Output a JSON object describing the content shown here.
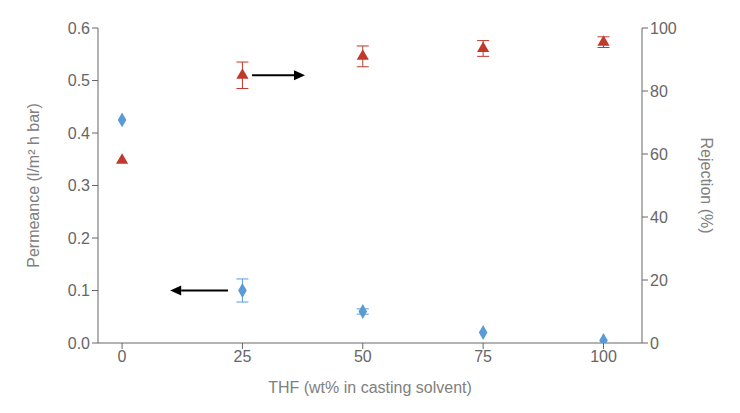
{
  "chart_data": {
    "type": "scatter",
    "xlabel": "THF (wt% in casting solvent)",
    "ylabel": "Permeance (l/m² h bar)",
    "y2label": "Rejection (%)",
    "x": [
      0,
      25,
      50,
      75,
      100
    ],
    "series": [
      {
        "color": "#5b9bd5",
        "marker": "diamond",
        "values": [
          0.425,
          0.1,
          0.06,
          0.02,
          0.005
        ],
        "error": [
          0.0,
          0.022,
          0.005,
          0.0,
          0.0
        ]
      },
      {
        "color": "#c0392b",
        "marker": "triangle",
        "axis": "y2",
        "values": [
          58.0,
          85.0,
          91.0,
          93.5,
          95.5
        ],
        "error": [
          0.0,
          4.2,
          3.3,
          2.5,
          1.7
        ]
      }
    ],
    "xlim": [
      -5,
      108
    ],
    "xticks": [
      0,
      25,
      50,
      75,
      100
    ],
    "ylim": [
      0,
      0.6
    ],
    "yticks": [
      {
        "value": 0,
        "label": "0.0"
      },
      0.1,
      0.2,
      0.3,
      0.4,
      0.5,
      0.6
    ],
    "y2lim": [
      0,
      100
    ],
    "y2ticks": [
      0,
      20,
      40,
      60,
      80,
      100
    ],
    "annotations": [
      {
        "type": "arrow",
        "from": {
          "x": 22,
          "y": 0.1
        },
        "to": {
          "x": 10,
          "y": 0.1
        }
      },
      {
        "type": "arrow",
        "axis": "y2",
        "from": {
          "x": 27,
          "y": 85
        },
        "to": {
          "x": 38,
          "y": 85
        }
      }
    ]
  }
}
